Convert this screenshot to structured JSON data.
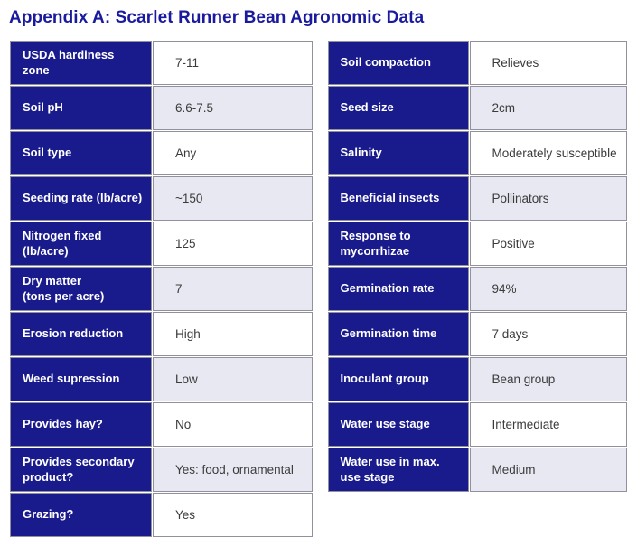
{
  "title": "Appendix A: Scarlet Runner Bean Agronomic Data",
  "colors": {
    "title_color": "#1a1a9e",
    "label_bg": "#191b8c",
    "label_text": "#ffffff",
    "value_text": "#3b3b3b",
    "row_bg": "#ffffff",
    "row_alt_bg": "#e7e8f2",
    "border_color": "#91919e"
  },
  "left_table": {
    "rows": [
      {
        "label": "USDA hardiness zone",
        "value": "7-11"
      },
      {
        "label": "Soil pH",
        "value": "6.6-7.5"
      },
      {
        "label": "Soil type",
        "value": "Any"
      },
      {
        "label": "Seeding rate (lb/acre)",
        "value": "~150"
      },
      {
        "label": "Nitrogen fixed (lb/acre)",
        "value": "125"
      },
      {
        "label": "Dry matter\n(tons per acre)",
        "value": "7"
      },
      {
        "label": "Erosion reduction",
        "value": "High"
      },
      {
        "label": "Weed supression",
        "value": "Low"
      },
      {
        "label": "Provides hay?",
        "value": "No"
      },
      {
        "label": "Provides secondary\nproduct?",
        "value": "Yes: food, ornamental"
      },
      {
        "label": "Grazing?",
        "value": "Yes"
      }
    ]
  },
  "right_table": {
    "rows": [
      {
        "label": "Soil compaction",
        "value": "Relieves"
      },
      {
        "label": "Seed size",
        "value": "2cm"
      },
      {
        "label": "Salinity",
        "value": "Moderately susceptible"
      },
      {
        "label": "Beneficial insects",
        "value": "Pollinators"
      },
      {
        "label": "Response to\nmycorrhizae",
        "value": "Positive"
      },
      {
        "label": "Germination rate",
        "value": "94%"
      },
      {
        "label": "Germination time",
        "value": "7 days"
      },
      {
        "label": "Inoculant group",
        "value": "Bean group"
      },
      {
        "label": "Water use stage",
        "value": "Intermediate"
      },
      {
        "label": "Water use in max.\nuse stage",
        "value": "Medium"
      }
    ]
  }
}
